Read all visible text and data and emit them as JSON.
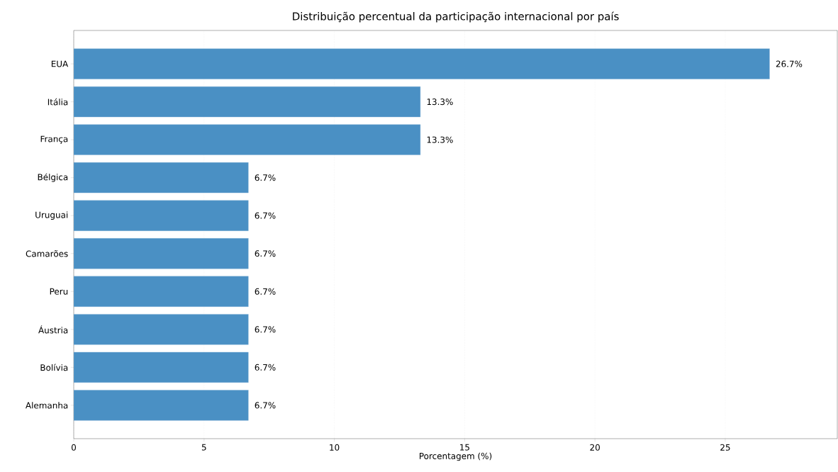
{
  "chart_data": {
    "type": "bar",
    "orientation": "horizontal",
    "title": "Distribuição percentual da participação internacional por país",
    "xlabel": "Porcentagem (%)",
    "categories": [
      "EUA",
      "Itália",
      "França",
      "Bélgica",
      "Uruguai",
      "Camarões",
      "Peru",
      "Áustria",
      "Bolívia",
      "Alemanha"
    ],
    "values": [
      26.7,
      13.3,
      13.3,
      6.7,
      6.7,
      6.7,
      6.7,
      6.7,
      6.7,
      6.7
    ],
    "value_labels": [
      "26.7%",
      "13.3%",
      "13.3%",
      "6.7%",
      "6.7%",
      "6.7%",
      "6.7%",
      "6.7%",
      "6.7%",
      "6.7%"
    ],
    "color": "#4a90c4",
    "xlim": [
      0,
      29.3
    ],
    "xticks": [
      0,
      5,
      10,
      15,
      20,
      25
    ],
    "grid": "x"
  }
}
